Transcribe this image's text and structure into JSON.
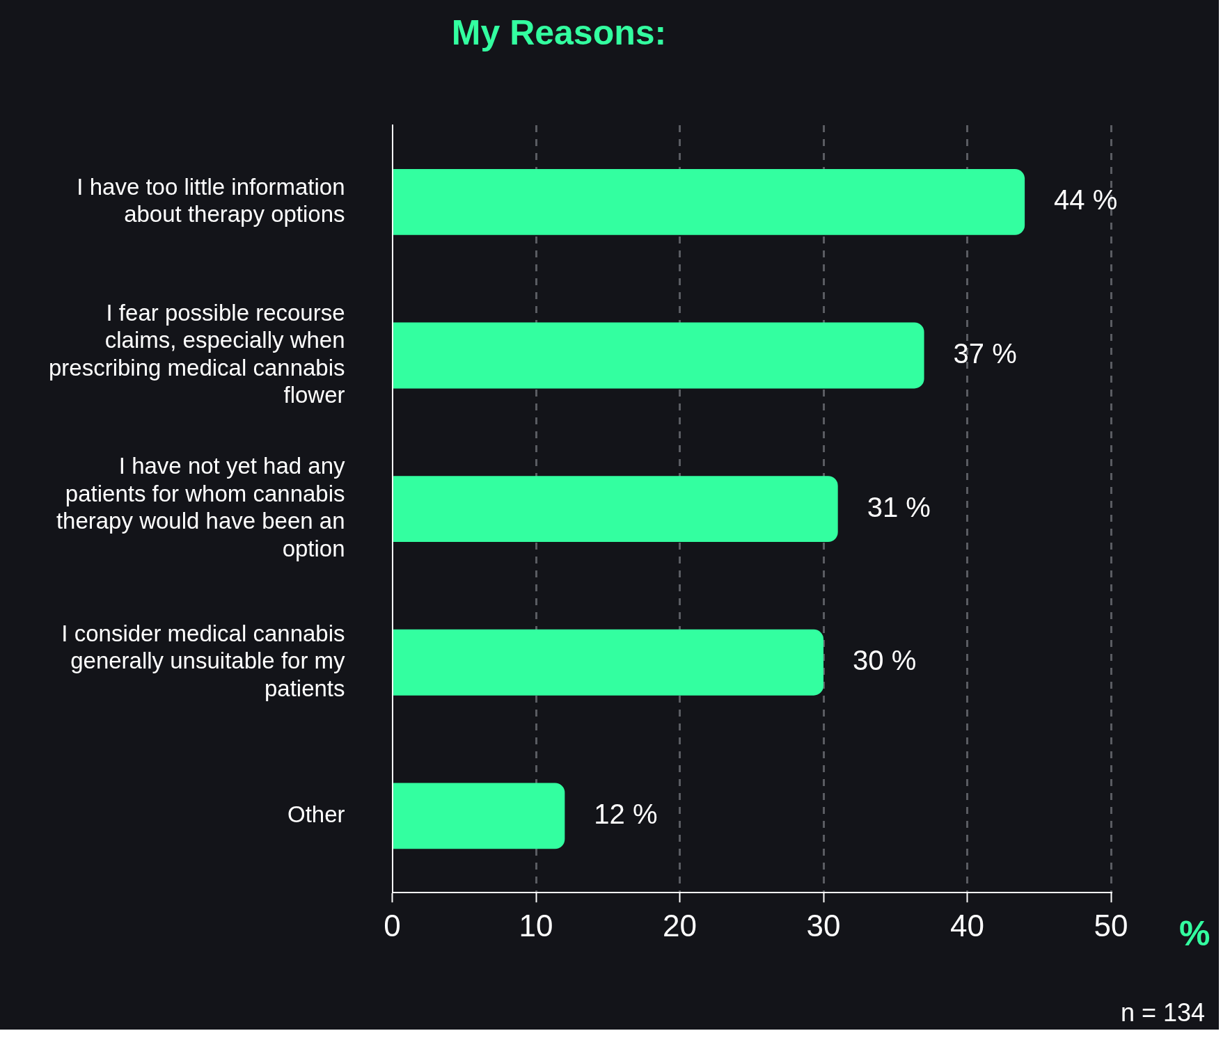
{
  "chart_data": {
    "type": "bar",
    "orientation": "horizontal",
    "title": "My Reasons:",
    "xlabel": "%",
    "categories": [
      "I have too little information about therapy options",
      "I fear possible recourse claims, especially when prescribing medical cannabis flower",
      "I have not yet had any patients for whom cannabis therapy would have been an option",
      "I consider medical cannabis generally unsuitable for my patients",
      "Other"
    ],
    "values": [
      44,
      37,
      31,
      30,
      12
    ],
    "value_labels": [
      "44 %",
      "37 %",
      "31 %",
      "30 %",
      "12 %"
    ],
    "color": "#33ffa0",
    "xlim": [
      0,
      50
    ],
    "xticks": [
      0,
      10,
      20,
      30,
      40,
      50
    ],
    "grid": "x",
    "legend": false,
    "annotations": [
      "n = 134"
    ]
  }
}
